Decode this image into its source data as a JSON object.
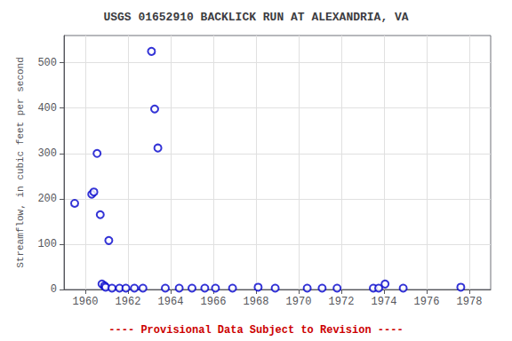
{
  "chart_data": {
    "type": "scatter",
    "title": "USGS 01652910 BACKLICK RUN AT ALEXANDRIA, VA",
    "y_label": "Streamflow, in cubic feet per second",
    "x": [
      1959.5,
      1960.3,
      1960.4,
      1960.55,
      1960.7,
      1960.78,
      1960.9,
      1960.95,
      1961.1,
      1961.25,
      1963.1,
      1963.25,
      1963.4,
      1961.6,
      1961.9,
      1962.3,
      1962.7,
      1963.75,
      1964.4,
      1965.0,
      1965.6,
      1966.1,
      1966.9,
      1968.1,
      1968.9,
      1970.4,
      1971.1,
      1971.8,
      1973.5,
      1973.75,
      1974.05,
      1974.9,
      1977.6
    ],
    "values": [
      190,
      210,
      215,
      300,
      165,
      12,
      8,
      5,
      108,
      3,
      525,
      398,
      312,
      3,
      3,
      3,
      3,
      3,
      3,
      3,
      3,
      3,
      3,
      5,
      3,
      3,
      3,
      3,
      3,
      3,
      12,
      3,
      5
    ],
    "color": "#0000cc",
    "marker": "circle",
    "xlim": [
      1959,
      1979
    ],
    "ylim": [
      0,
      560
    ],
    "xticks": [
      1960,
      1962,
      1964,
      1966,
      1968,
      1970,
      1972,
      1974,
      1976,
      1978
    ],
    "yticks": [
      0,
      100,
      200,
      300,
      400,
      500
    ],
    "grid": true,
    "annotations": [
      {
        "text": "---- Provisional Data Subject to Revision ----",
        "color": "#cc0000"
      }
    ]
  }
}
